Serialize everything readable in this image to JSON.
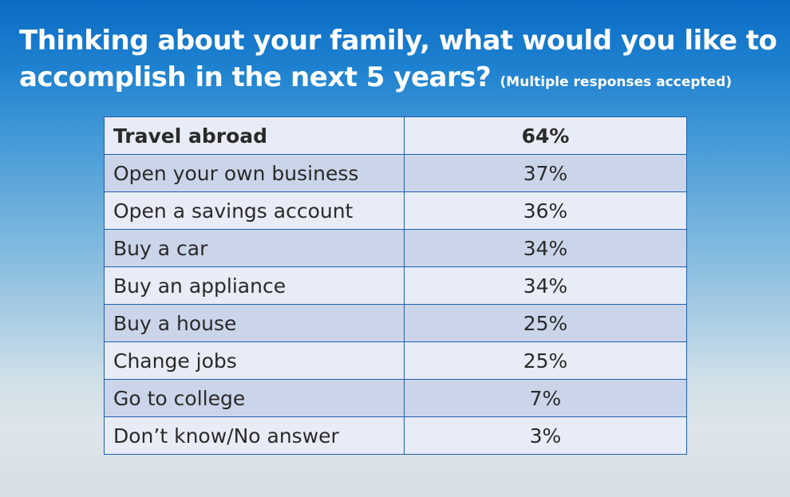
{
  "title": {
    "main": "Thinking about your family, what would you like to accomplish in the next 5 years?",
    "note": "(Multiple responses accepted)"
  },
  "colors": {
    "background_top": "#0a6cc4",
    "background_bottom": "#dde5ea",
    "table_border": "#1f5fae",
    "row_light": "#e8ecf6",
    "row_dark": "#cbd5ea",
    "title_text": "#ffffff"
  },
  "chart_data": {
    "type": "table",
    "rows": [
      {
        "label": "Travel abroad",
        "value": "64%"
      },
      {
        "label": "Open your own business",
        "value": "37%"
      },
      {
        "label": "Open a savings account",
        "value": "36%"
      },
      {
        "label": "Buy a car",
        "value": "34%"
      },
      {
        "label": "Buy an appliance",
        "value": "34%"
      },
      {
        "label": "Buy a house",
        "value": "25%"
      },
      {
        "label": "Change jobs",
        "value": "25%"
      },
      {
        "label": "Go to college",
        "value": "7%"
      },
      {
        "label": "Don’t know/No answer",
        "value": "3%"
      }
    ]
  }
}
